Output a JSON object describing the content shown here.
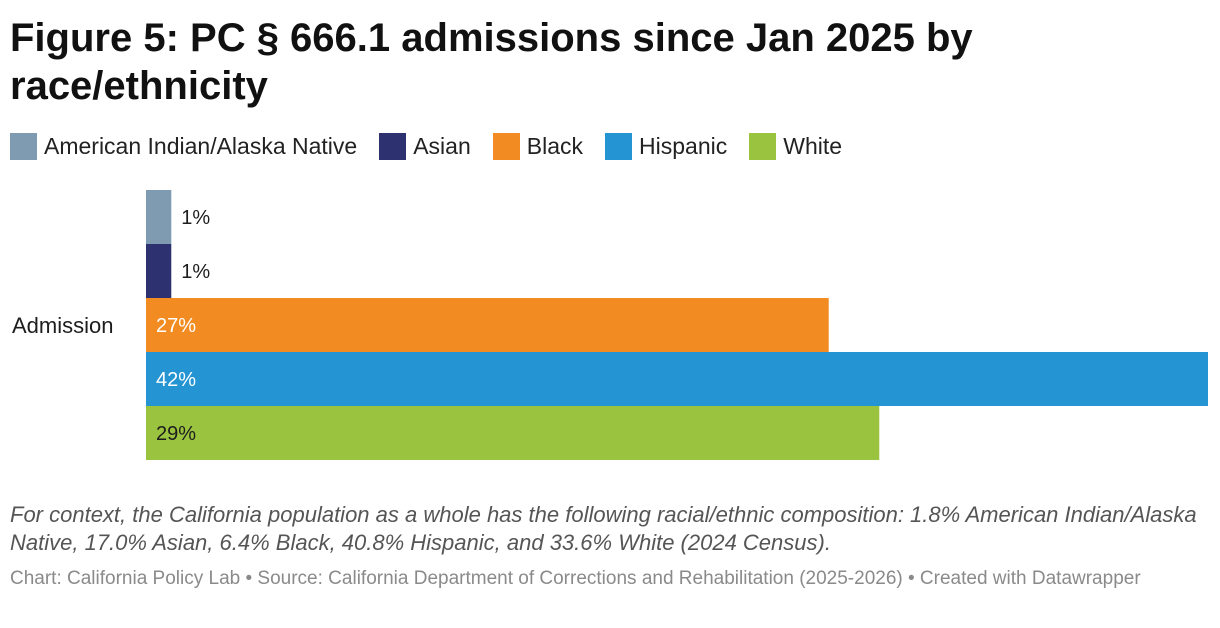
{
  "title": "Figure 5: PC § 666.1 admissions since Jan 2025 by race/ethnicity",
  "note": "For context, the California population as a whole has the following racial/ethnic composition: 1.8% American Indian/Alaska Native, 17.0% Asian, 6.4% Black, 40.8% Hispanic, and 33.6% White (2024 Census).",
  "source": "Chart: California Policy Lab • Source: California Department of Corrections and Rehabilitation (2025-2026) • Created with Datawrapper",
  "colors": {
    "american_indian": "#7f9bb2",
    "asian": "#2d3170",
    "black": "#f28c22",
    "hispanic": "#2494d3",
    "white": "#9ac33f"
  },
  "chart_data": {
    "type": "bar",
    "orientation": "horizontal",
    "categories": [
      "Admission"
    ],
    "xlim": [
      0,
      42
    ],
    "series": [
      {
        "name": "American Indian/Alaska Native",
        "values": [
          1
        ],
        "label": "1%",
        "color": "#7f9bb2"
      },
      {
        "name": "Asian",
        "values": [
          1
        ],
        "label": "1%",
        "color": "#2d3170"
      },
      {
        "name": "Black",
        "values": [
          27
        ],
        "label": "27%",
        "color": "#f28c22"
      },
      {
        "name": "Hispanic",
        "values": [
          42
        ],
        "label": "42%",
        "color": "#2494d3"
      },
      {
        "name": "White",
        "values": [
          29
        ],
        "label": "29%",
        "color": "#9ac33f"
      }
    ]
  }
}
